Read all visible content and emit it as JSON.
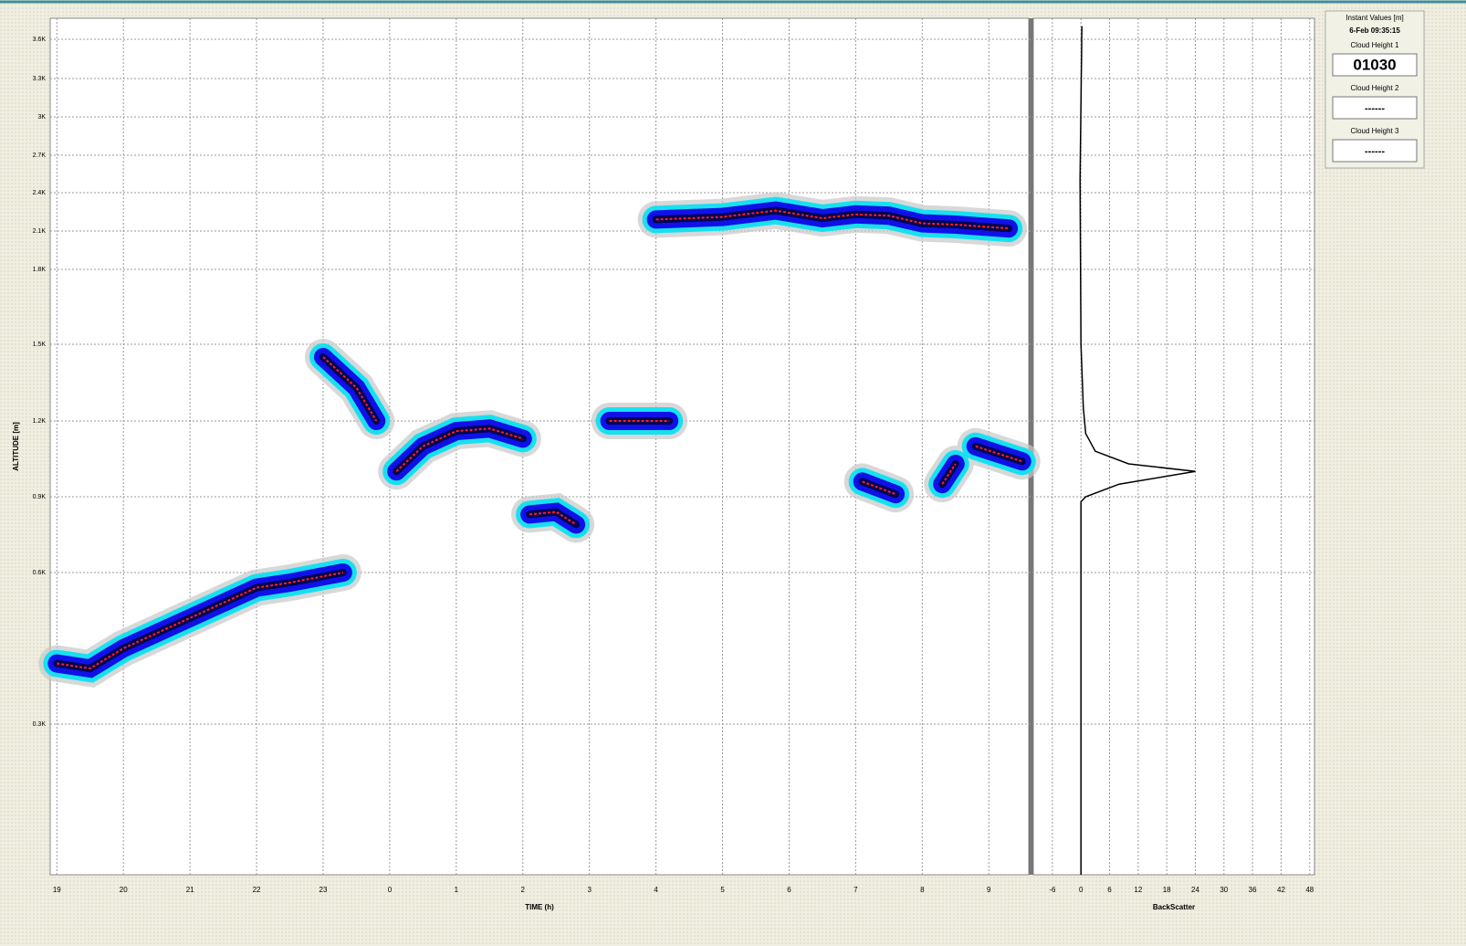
{
  "chart_data": [
    {
      "type": "line",
      "y_label": "ALTITUDE [m]",
      "x_label": "TIME (h)",
      "x": [
        19,
        19.5,
        20,
        20.5,
        21,
        21.5,
        22,
        22.5,
        23.3,
        null,
        23,
        23.5,
        23.8,
        null,
        24.1,
        24.5,
        25,
        25.5,
        26,
        null,
        26.1,
        26.5,
        26.8,
        null,
        27.3,
        27.7,
        28.2,
        null,
        28,
        29,
        29.8,
        30.5,
        31,
        31.5,
        32,
        32.5,
        33.3,
        null,
        31.1,
        31.6,
        null,
        32.3,
        32.5,
        null,
        32.8,
        33.5
      ],
      "values": [
        420,
        410,
        450,
        480,
        510,
        540,
        570,
        580,
        600,
        null,
        1450,
        1330,
        1200,
        null,
        1000,
        1100,
        1160,
        1170,
        1130,
        null,
        830,
        840,
        790,
        null,
        1200,
        1200,
        1200,
        null,
        2190,
        2210,
        2260,
        2200,
        2230,
        2220,
        2160,
        2150,
        2120,
        null,
        960,
        910,
        null,
        950,
        1030,
        null,
        1100,
        1040
      ],
      "color": "#ff2020",
      "xlim": [
        18.9,
        33.6
      ],
      "xticks": [
        19,
        20,
        21,
        22,
        23,
        {
          "value": 24,
          "label": "0"
        },
        {
          "value": 25,
          "label": "1"
        },
        {
          "value": 26,
          "label": "2"
        },
        {
          "value": 27,
          "label": "3"
        },
        {
          "value": 28,
          "label": "4"
        },
        {
          "value": 29,
          "label": "5"
        },
        {
          "value": 30,
          "label": "6"
        },
        {
          "value": 31,
          "label": "7"
        },
        {
          "value": 32,
          "label": "8"
        },
        {
          "value": 33,
          "label": "9"
        }
      ],
      "ylim": [
        0,
        3750
      ],
      "yticks": [
        {
          "value": 300,
          "label": "0.3K"
        },
        {
          "value": 600,
          "label": "0.6K"
        },
        {
          "value": 900,
          "label": "0.9K"
        },
        {
          "value": 1200,
          "label": "1.2K"
        },
        {
          "value": 1500,
          "label": "1.5K"
        },
        {
          "value": 1800,
          "label": "1.8K"
        },
        {
          "value": 2100,
          "label": "2.1K"
        },
        {
          "value": 2400,
          "label": "2.4K"
        },
        {
          "value": 2700,
          "label": "2.7K"
        },
        {
          "value": 3000,
          "label": "3K"
        },
        {
          "value": 3300,
          "label": "3.3K"
        },
        {
          "value": 3600,
          "label": "3.6K"
        }
      ],
      "grid": true
    },
    {
      "type": "line",
      "x_label": "BackScatter",
      "y": [
        0,
        880,
        900,
        950,
        1000,
        1030,
        1080,
        1150,
        1250,
        1500,
        2500,
        3700
      ],
      "values": [
        0,
        0,
        1,
        8,
        24,
        10,
        3,
        1,
        0.5,
        0,
        -0.2,
        0.2
      ],
      "color": "#000000",
      "xlim": [
        -10,
        49
      ],
      "xticks": [
        -6,
        0,
        6,
        12,
        18,
        24,
        30,
        36,
        42,
        48
      ],
      "grid": true
    }
  ],
  "panel": {
    "title": "Instant Values [m]",
    "time": "6-Feb 09:35:15",
    "heights": [
      {
        "label": "Cloud Height 1",
        "value": "01030"
      },
      {
        "label": "Cloud Height 2",
        "value": "------"
      },
      {
        "label": "Cloud Height 3",
        "value": "------"
      }
    ]
  }
}
